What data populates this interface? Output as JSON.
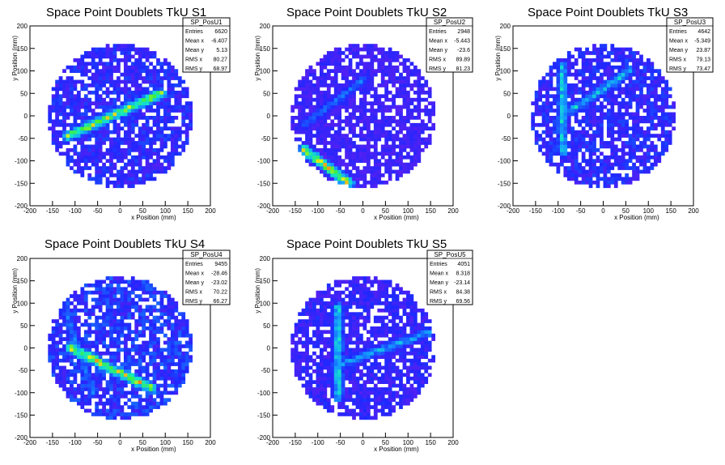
{
  "chart_data": [
    {
      "type": "heatmap",
      "title": "Space Point Doublets TkU S1",
      "xlabel": "x Position (mm)",
      "ylabel": "y Position (mm)",
      "xlim": [
        -200,
        200
      ],
      "ylim": [
        -200,
        200
      ],
      "xticks": [
        -200,
        -150,
        -100,
        -50,
        0,
        50,
        100,
        150,
        200
      ],
      "yticks": [
        -200,
        -150,
        -100,
        -50,
        0,
        50,
        100,
        150,
        200
      ],
      "stats": {
        "name": "SP_PosU1",
        "rows": [
          {
            "label": "Entries",
            "value": "6620"
          },
          {
            "label": "Mean x",
            "value": "-6.407"
          },
          {
            "label": "Mean y",
            "value": "5.13"
          },
          {
            "label": "RMS x",
            "value": "80.27"
          },
          {
            "label": "RMS y",
            "value": "68.97"
          }
        ]
      },
      "features": [
        {
          "kind": "line",
          "from": [
            -115,
            -45
          ],
          "to": [
            90,
            50
          ],
          "peak": 0.8
        },
        {
          "kind": "line",
          "from": [
            -80,
            -20
          ],
          "to": [
            60,
            40
          ],
          "peak": 0.35
        }
      ],
      "radius": 160,
      "background_level": 0.12
    },
    {
      "type": "heatmap",
      "title": "Space Point Doublets TkU S2",
      "xlabel": "x Position (mm)",
      "ylabel": "y Position (mm)",
      "xlim": [
        -200,
        200
      ],
      "ylim": [
        -200,
        200
      ],
      "xticks": [
        -200,
        -150,
        -100,
        -50,
        0,
        50,
        100,
        150,
        200
      ],
      "yticks": [
        -200,
        -150,
        -100,
        -50,
        0,
        50,
        100,
        150,
        200
      ],
      "stats": {
        "name": "SP_PosU2",
        "rows": [
          {
            "label": "Entries",
            "value": "2948"
          },
          {
            "label": "Mean x",
            "value": "-5.443"
          },
          {
            "label": "Mean y",
            "value": "-23.6"
          },
          {
            "label": "RMS x",
            "value": "89.89"
          },
          {
            "label": "RMS y",
            "value": "81.23"
          }
        ]
      },
      "features": [
        {
          "kind": "line",
          "from": [
            -130,
            -75
          ],
          "to": [
            -30,
            -150
          ],
          "peak": 0.85
        },
        {
          "kind": "line",
          "from": [
            -130,
            -20
          ],
          "to": [
            0,
            80
          ],
          "peak": 0.3
        }
      ],
      "radius": 160,
      "background_level": 0.08
    },
    {
      "type": "heatmap",
      "title": "Space Point Doublets TkU S3",
      "xlabel": "x Position (mm)",
      "ylabel": "y Position (mm)",
      "xlim": [
        -200,
        200
      ],
      "ylim": [
        -200,
        200
      ],
      "xticks": [
        -200,
        -150,
        -100,
        -50,
        0,
        50,
        100,
        150,
        200
      ],
      "yticks": [
        -200,
        -150,
        -100,
        -50,
        0,
        50,
        100,
        150,
        200
      ],
      "stats": {
        "name": "SP_PosU3",
        "rows": [
          {
            "label": "Entries",
            "value": "4642"
          },
          {
            "label": "Mean x",
            "value": "-5.349"
          },
          {
            "label": "Mean y",
            "value": "23.87"
          },
          {
            "label": "RMS x",
            "value": "79.13"
          },
          {
            "label": "RMS y",
            "value": "73.47"
          }
        ]
      },
      "features": [
        {
          "kind": "line",
          "from": [
            -90,
            110
          ],
          "to": [
            -90,
            -80
          ],
          "peak": 0.5
        },
        {
          "kind": "line",
          "from": [
            -75,
            10
          ],
          "to": [
            60,
            100
          ],
          "peak": 0.45
        }
      ],
      "radius": 160,
      "background_level": 0.12
    },
    {
      "type": "heatmap",
      "title": "Space Point Doublets TkU S4",
      "xlabel": "x Position (mm)",
      "ylabel": "y Position (mm)",
      "xlim": [
        -200,
        200
      ],
      "ylim": [
        -200,
        200
      ],
      "xticks": [
        -200,
        -150,
        -100,
        -50,
        0,
        50,
        100,
        150,
        200
      ],
      "yticks": [
        -200,
        -150,
        -100,
        -50,
        0,
        50,
        100,
        150,
        200
      ],
      "stats": {
        "name": "SP_PosU4",
        "rows": [
          {
            "label": "Entries",
            "value": "9455"
          },
          {
            "label": "Mean x",
            "value": "-28.46"
          },
          {
            "label": "Mean y",
            "value": "-23.02"
          },
          {
            "label": "RMS x",
            "value": "70.22"
          },
          {
            "label": "RMS y",
            "value": "66.27"
          }
        ]
      },
      "features": [
        {
          "kind": "line",
          "from": [
            -110,
            0
          ],
          "to": [
            70,
            -90
          ],
          "peak": 0.85
        },
        {
          "kind": "line",
          "from": [
            -120,
            80
          ],
          "to": [
            -60,
            -100
          ],
          "peak": 0.3
        }
      ],
      "radius": 160,
      "background_level": 0.15
    },
    {
      "type": "heatmap",
      "title": "Space Point Doublets TkU S5",
      "xlabel": "x Position (mm)",
      "ylabel": "y Position (mm)",
      "xlim": [
        -200,
        200
      ],
      "ylim": [
        -200,
        200
      ],
      "xticks": [
        -200,
        -150,
        -100,
        -50,
        0,
        50,
        100,
        150,
        200
      ],
      "yticks": [
        -200,
        -150,
        -100,
        -50,
        0,
        50,
        100,
        150,
        200
      ],
      "stats": {
        "name": "SP_PosU5",
        "rows": [
          {
            "label": "Entries",
            "value": "4051"
          },
          {
            "label": "Mean x",
            "value": "8.318"
          },
          {
            "label": "Mean y",
            "value": "-23.14"
          },
          {
            "label": "RMS x",
            "value": "84.38"
          },
          {
            "label": "RMS y",
            "value": "69.56"
          }
        ]
      },
      "features": [
        {
          "kind": "line",
          "from": [
            -55,
            90
          ],
          "to": [
            -55,
            -110
          ],
          "peak": 0.55
        },
        {
          "kind": "line",
          "from": [
            -60,
            -40
          ],
          "to": [
            160,
            40
          ],
          "peak": 0.4
        }
      ],
      "radius": 160,
      "background_level": 0.1
    }
  ]
}
